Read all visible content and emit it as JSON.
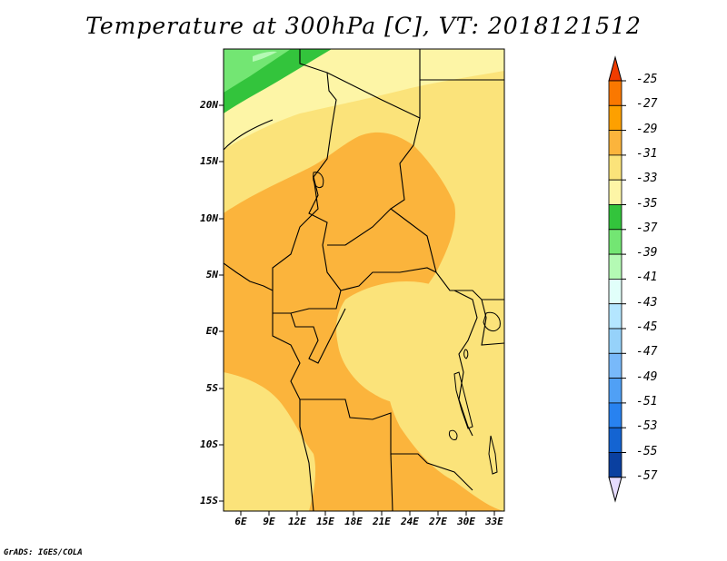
{
  "title": "Temperature at 300hPa [C], VT: 2018121512",
  "credit": "GrADS: IGES/COLA",
  "map": {
    "lon_range": [
      3.5,
      33.5
    ],
    "lat_range": [
      -16,
      24.5
    ],
    "lat_ticks": [
      "20N",
      "15N",
      "10N",
      "5N",
      "EQ",
      "5S",
      "10S",
      "15S"
    ],
    "lon_ticks": [
      "6E",
      "9E",
      "12E",
      "15E",
      "18E",
      "21E",
      "24E",
      "27E",
      "30E",
      "33E"
    ],
    "colors": {
      "c31": "#fbb43c",
      "c33": "#fbe37a",
      "c35": "#fdf5a6",
      "c37": "#33c43c",
      "c39": "#73e673",
      "c41": "#b4fab4"
    }
  },
  "colorbar": {
    "labels": [
      "-25",
      "-27",
      "-29",
      "-31",
      "-33",
      "-35",
      "-37",
      "-39",
      "-41",
      "-43",
      "-45",
      "-47",
      "-49",
      "-51",
      "-53",
      "-55",
      "-57"
    ],
    "colors": [
      "#f03c00",
      "#fa7800",
      "#fda000",
      "#fbb43c",
      "#fbe37a",
      "#fdf5a6",
      "#33c43c",
      "#73e673",
      "#b4fab4",
      "#e1fffa",
      "#b4e6ff",
      "#96d2fa",
      "#78b9fa",
      "#50a0f5",
      "#2882f0",
      "#1464d2",
      "#0a40a0",
      "#111166"
    ],
    "over_color": "#f03c00",
    "under_color": "#e6dcff"
  }
}
